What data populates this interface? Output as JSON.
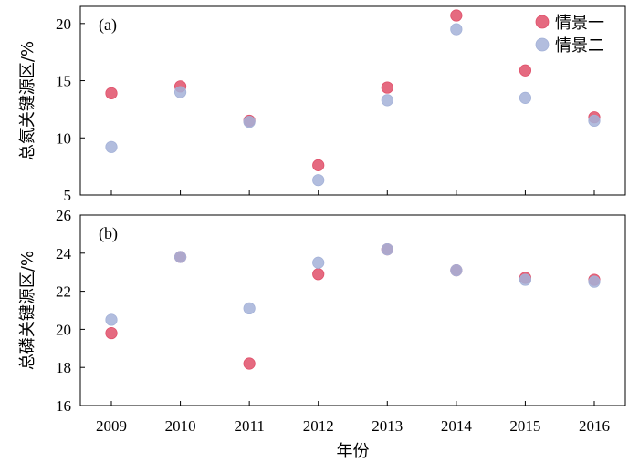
{
  "chart_data": [
    {
      "type": "scatter",
      "panel_label": "(a)",
      "ylabel": "总氮关键源区/%",
      "xlabel": "",
      "x": [
        2009,
        2010,
        2011,
        2012,
        2013,
        2014,
        2015,
        2016
      ],
      "x_tick_labels": [
        "2009",
        "2010",
        "2011",
        "2012",
        "2013",
        "2014",
        "2015",
        "2016"
      ],
      "xlim": [
        2008.55,
        2016.45
      ],
      "ylim": [
        5,
        21.5
      ],
      "y_ticks": [
        5,
        10,
        15,
        20
      ],
      "y_tick_labels": [
        "5",
        "10",
        "15",
        "20"
      ],
      "legend_position": "top-right",
      "series": [
        {
          "name": "情景一",
          "color": "#e0506a",
          "values": [
            13.9,
            14.5,
            11.5,
            7.6,
            14.4,
            20.7,
            15.9,
            11.8
          ]
        },
        {
          "name": "情景二",
          "color": "#a4b2d8",
          "values": [
            9.2,
            14.0,
            11.4,
            6.3,
            13.3,
            19.5,
            13.5,
            11.5
          ]
        }
      ]
    },
    {
      "type": "scatter",
      "panel_label": "(b)",
      "ylabel": "总磷关键源区/%",
      "xlabel": "年份",
      "x": [
        2009,
        2010,
        2011,
        2012,
        2013,
        2014,
        2015,
        2016
      ],
      "x_tick_labels": [
        "2009",
        "2010",
        "2011",
        "2012",
        "2013",
        "2014",
        "2015",
        "2016"
      ],
      "xlim": [
        2008.55,
        2016.45
      ],
      "ylim": [
        16,
        26
      ],
      "y_ticks": [
        16,
        18,
        20,
        22,
        24,
        26
      ],
      "y_tick_labels": [
        "16",
        "18",
        "20",
        "22",
        "24",
        "26"
      ],
      "series": [
        {
          "name": "情景一",
          "color": "#e0506a",
          "values": [
            19.8,
            23.8,
            18.2,
            22.9,
            24.2,
            23.1,
            22.7,
            22.6
          ]
        },
        {
          "name": "情景二",
          "color": "#a4b2d8",
          "values": [
            20.5,
            23.8,
            21.1,
            23.5,
            24.2,
            23.1,
            22.6,
            22.5
          ]
        }
      ]
    }
  ]
}
